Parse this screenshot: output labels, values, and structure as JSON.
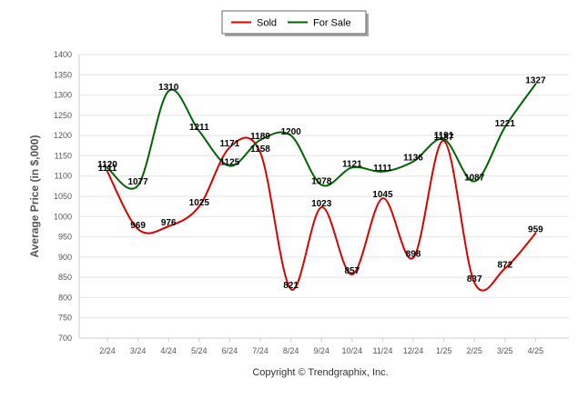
{
  "chart_data": {
    "type": "line",
    "categories": [
      "2/24",
      "3/24",
      "4/24",
      "5/24",
      "6/24",
      "7/24",
      "8/24",
      "9/24",
      "10/24",
      "11/24",
      "12/24",
      "1/25",
      "2/25",
      "3/25",
      "4/25"
    ],
    "series": [
      {
        "name": "Sold",
        "color": "#dd0000",
        "values": [
          1111,
          969,
          976,
          1025,
          1171,
          1158,
          821,
          1023,
          857,
          1045,
          898,
          1187,
          837,
          872,
          959
        ]
      },
      {
        "name": "For Sale",
        "color": "#006400",
        "values": [
          1120,
          1077,
          1310,
          1211,
          1125,
          1189,
          1200,
          1078,
          1121,
          1111,
          1136,
          1191,
          1087,
          1221,
          1327
        ]
      }
    ],
    "ylabel": "Average Price (in $,000)",
    "xlabel": "",
    "ylim": [
      700,
      1400
    ],
    "yticks": [
      700,
      750,
      800,
      850,
      900,
      950,
      1000,
      1050,
      1100,
      1150,
      1200,
      1250,
      1300,
      1350,
      1400
    ],
    "grid": true,
    "legend_position": "top-center"
  },
  "footer": {
    "copyright": "Copyright © Trendgraphix, Inc."
  }
}
